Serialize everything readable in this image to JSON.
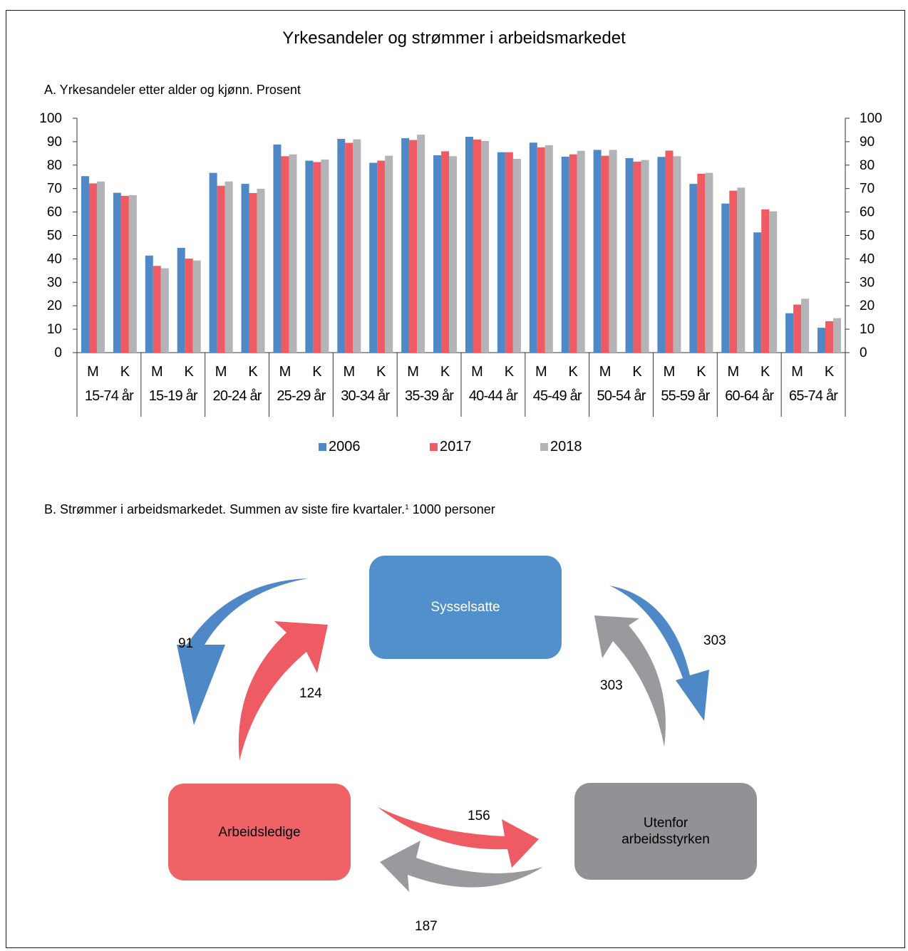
{
  "title": "Yrkesandeler og strømmer i arbeidsmarkedet",
  "panel_a_title": "A.  Yrkesandeler etter alder og kjønn. Prosent",
  "panel_b_title": "B.     Strømmer i arbeidsmarkedet. Summen av siste fire kvartaler.",
  "panel_b_sup": "1",
  "panel_b_unit": " 1000 personer",
  "colors": {
    "2006": "#4f88c6",
    "2017": "#ef5b62",
    "2018": "#b3b3b8"
  },
  "chart_data": {
    "type": "bar",
    "title": "A.  Yrkesandeler etter alder og kjønn. Prosent",
    "ylim": [
      0,
      100
    ],
    "yticks": [
      0,
      10,
      20,
      30,
      40,
      50,
      60,
      70,
      80,
      90,
      100
    ],
    "secondary_y_axis": true,
    "legend_position": "bottom",
    "grid": false,
    "groups": [
      "15-74 år",
      "15-19 år",
      "20-24 år",
      "25-29 år",
      "30-34 år",
      "35-39 år",
      "40-44 år",
      "45-49 år",
      "50-54 år",
      "55-59 år",
      "60-64 år",
      "65-74 år"
    ],
    "sexes": [
      "M",
      "K"
    ],
    "series": [
      {
        "name": "2006",
        "values": [
          75.3,
          68.2,
          41.4,
          44.7,
          76.7,
          72.0,
          88.8,
          81.9,
          91.2,
          81.0,
          91.5,
          84.2,
          92.1,
          85.5,
          89.6,
          83.6,
          86.5,
          83.0,
          83.5,
          72.0,
          63.6,
          51.3,
          16.8,
          10.6
        ]
      },
      {
        "name": "2017",
        "values": [
          72.2,
          66.9,
          37.0,
          40.1,
          71.2,
          68.1,
          83.8,
          81.3,
          89.5,
          81.9,
          90.7,
          85.9,
          90.9,
          85.5,
          87.6,
          84.6,
          84.0,
          81.5,
          86.2,
          76.3,
          69.1,
          61.1,
          20.5,
          13.4
        ]
      },
      {
        "name": "2018",
        "values": [
          73.0,
          67.2,
          36.0,
          39.3,
          73.0,
          69.9,
          84.6,
          82.4,
          91.0,
          84.0,
          93.0,
          83.8,
          90.3,
          82.7,
          88.5,
          86.1,
          86.5,
          82.2,
          83.8,
          76.7,
          70.4,
          60.3,
          23.0,
          14.7
        ]
      }
    ]
  },
  "flow_diagram": {
    "nodes": {
      "employed": "Sysselsatte",
      "unemployed": "Arbeidsledige",
      "outside": "Utenfor arbeidsstyrken"
    },
    "flows": {
      "employed_to_unemployed": "91",
      "unemployed_to_employed": "124",
      "employed_to_outside": "303",
      "outside_to_employed": "303",
      "unemployed_to_outside": "156",
      "outside_to_unemployed": "187"
    }
  }
}
